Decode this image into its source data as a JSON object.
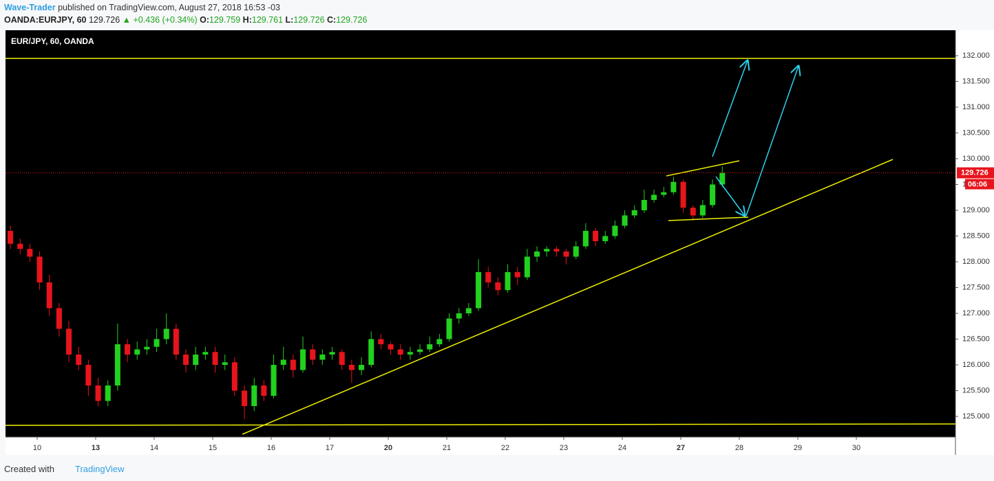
{
  "header": {
    "author": "Wave-Trader",
    "published": "published on TradingView.com, August 27, 2018 16:53 -03",
    "symbol": "OANDA:EURJPY, 60",
    "last": "129.726",
    "arrow": "▲",
    "change": "+0.436 (+0.34%)",
    "ohlc": [
      {
        "label": "O:",
        "value": "129.759"
      },
      {
        "label": "H:",
        "value": "129.761"
      },
      {
        "label": "L:",
        "value": "129.726"
      },
      {
        "label": "C:",
        "value": "129.726"
      }
    ]
  },
  "chart_data": {
    "type": "candlestick",
    "title": "EUR/JPY, 60, OANDA",
    "x": [
      -0.458,
      -0.291,
      -0.125,
      0.042,
      0.209,
      0.375,
      0.542,
      0.709,
      0.875,
      1.042,
      1.209,
      1.375,
      1.542,
      1.709,
      1.875,
      2.042,
      2.209,
      2.375,
      2.542,
      2.709,
      2.875,
      3.042,
      3.209,
      3.375,
      3.542,
      3.709,
      3.875,
      4.042,
      4.209,
      4.375,
      4.542,
      4.709,
      4.875,
      5.042,
      5.209,
      5.375,
      5.542,
      5.709,
      5.875,
      6.042,
      6.209,
      6.375,
      6.542,
      6.709,
      6.875,
      7.042,
      7.209,
      7.375,
      7.542,
      7.709,
      7.875,
      8.042,
      8.209,
      8.375,
      8.542,
      8.709,
      8.875,
      9.042,
      9.209,
      9.375,
      9.542,
      9.709,
      9.875,
      10.042,
      10.209,
      10.375,
      10.542,
      10.709,
      10.875,
      11.042,
      11.209,
      11.375,
      11.542,
      11.709
    ],
    "open": [
      128.6,
      128.35,
      128.25,
      128.1,
      127.6,
      127.1,
      126.7,
      126.2,
      126.0,
      125.6,
      125.3,
      125.6,
      126.4,
      126.2,
      126.3,
      126.35,
      126.5,
      126.7,
      126.2,
      126.0,
      126.2,
      126.25,
      126.0,
      126.05,
      125.5,
      125.2,
      125.6,
      125.4,
      126.0,
      126.1,
      125.9,
      126.3,
      126.1,
      126.2,
      126.25,
      126.0,
      125.9,
      126.0,
      126.5,
      126.4,
      126.3,
      126.2,
      126.25,
      126.3,
      126.4,
      126.5,
      126.9,
      127.0,
      127.1,
      127.8,
      127.6,
      127.45,
      127.8,
      127.7,
      128.1,
      128.2,
      128.25,
      128.2,
      128.1,
      128.3,
      128.6,
      128.4,
      128.5,
      128.7,
      128.9,
      129.0,
      129.2,
      129.3,
      129.35,
      129.55,
      129.05,
      128.9,
      129.1,
      129.5
    ],
    "high": [
      128.7,
      128.45,
      128.35,
      128.2,
      127.75,
      127.2,
      126.85,
      126.35,
      126.1,
      125.75,
      125.7,
      126.8,
      126.5,
      126.45,
      126.5,
      126.7,
      127.0,
      126.8,
      126.3,
      126.35,
      126.35,
      126.35,
      126.2,
      126.15,
      125.6,
      125.75,
      125.7,
      126.2,
      126.35,
      126.2,
      126.55,
      126.4,
      126.3,
      126.35,
      126.3,
      126.1,
      126.15,
      126.65,
      126.6,
      126.45,
      126.4,
      126.35,
      126.4,
      126.55,
      126.6,
      127.0,
      127.1,
      127.2,
      128.05,
      127.9,
      127.7,
      127.95,
      127.9,
      128.25,
      128.3,
      128.3,
      128.3,
      128.25,
      128.4,
      128.75,
      128.65,
      128.6,
      128.8,
      129.0,
      129.1,
      129.4,
      129.4,
      129.45,
      129.65,
      129.6,
      129.1,
      129.2,
      129.6,
      129.85
    ],
    "low": [
      128.25,
      128.15,
      128.0,
      127.45,
      126.95,
      126.55,
      126.05,
      125.9,
      125.4,
      125.2,
      125.2,
      125.5,
      126.05,
      126.1,
      126.2,
      126.25,
      126.4,
      126.1,
      125.85,
      125.9,
      126.1,
      125.85,
      125.9,
      125.4,
      124.95,
      125.1,
      125.3,
      125.35,
      125.9,
      125.75,
      125.85,
      126.0,
      126.0,
      126.1,
      125.9,
      125.65,
      125.8,
      125.95,
      126.3,
      126.2,
      126.1,
      126.1,
      126.2,
      126.25,
      126.35,
      126.45,
      126.8,
      126.95,
      127.05,
      127.5,
      127.35,
      127.4,
      127.55,
      127.65,
      128.0,
      128.1,
      128.1,
      127.95,
      128.05,
      128.25,
      128.3,
      128.35,
      128.45,
      128.65,
      128.85,
      128.95,
      129.15,
      129.25,
      129.3,
      128.95,
      128.8,
      128.85,
      129.05,
      129.45
    ],
    "close": [
      128.35,
      128.25,
      128.1,
      127.6,
      127.1,
      126.7,
      126.2,
      126.0,
      125.6,
      125.3,
      125.6,
      126.4,
      126.2,
      126.3,
      126.35,
      126.5,
      126.7,
      126.2,
      126.0,
      126.2,
      126.25,
      126.0,
      126.05,
      125.5,
      125.2,
      125.6,
      125.4,
      126.0,
      126.1,
      125.9,
      126.3,
      126.1,
      126.2,
      126.25,
      126.0,
      125.9,
      126.0,
      126.5,
      126.4,
      126.3,
      126.2,
      126.25,
      126.3,
      126.4,
      126.5,
      126.9,
      127.0,
      127.1,
      127.8,
      127.6,
      127.45,
      127.8,
      127.7,
      128.1,
      128.2,
      128.25,
      128.2,
      128.1,
      128.3,
      128.6,
      128.4,
      128.5,
      128.7,
      128.9,
      129.0,
      129.2,
      129.3,
      129.35,
      129.55,
      129.05,
      128.9,
      129.1,
      129.5,
      129.726
    ],
    "up_color": "#22d11e",
    "down_color": "#e8141c",
    "background": "#000000",
    "xlim": [
      -0.541,
      15.694
    ],
    "xticks": [
      {
        "value": 0,
        "label": "10"
      },
      {
        "value": 1,
        "label": "13",
        "bold": true
      },
      {
        "value": 2,
        "label": "14"
      },
      {
        "value": 3,
        "label": "15"
      },
      {
        "value": 4,
        "label": "16"
      },
      {
        "value": 5,
        "label": "17"
      },
      {
        "value": 6,
        "label": "20",
        "bold": true
      },
      {
        "value": 7,
        "label": "21"
      },
      {
        "value": 8,
        "label": "22"
      },
      {
        "value": 9,
        "label": "23"
      },
      {
        "value": 10,
        "label": "24"
      },
      {
        "value": 11,
        "label": "27",
        "bold": true
      },
      {
        "value": 12,
        "label": "28"
      },
      {
        "value": 13,
        "label": "29"
      },
      {
        "value": 14,
        "label": "30"
      }
    ],
    "ylim": [
      124.6,
      132.493
    ],
    "yticks": [
      {
        "value": 125,
        "label": "125.000"
      },
      {
        "value": 125.5,
        "label": "125.500"
      },
      {
        "value": 126,
        "label": "126.000"
      },
      {
        "value": 126.5,
        "label": "126.500"
      },
      {
        "value": 127,
        "label": "127.000"
      },
      {
        "value": 127.5,
        "label": "127.500"
      },
      {
        "value": 128,
        "label": "128.000"
      },
      {
        "value": 128.5,
        "label": "128.500"
      },
      {
        "value": 129,
        "label": "129.000"
      },
      {
        "value": 129.5,
        "label": "129.500"
      },
      {
        "value": 130,
        "label": "130.000"
      },
      {
        "value": 130.5,
        "label": "130.500"
      },
      {
        "value": 131,
        "label": "131.000"
      },
      {
        "value": 131.5,
        "label": "131.500"
      },
      {
        "value": 132,
        "label": "132.000"
      }
    ],
    "last_price": {
      "value": 129.726,
      "label": "129.726"
    },
    "countdown": "06:06"
  },
  "footer": {
    "created_with": "Created with",
    "brand": "TradingView"
  }
}
